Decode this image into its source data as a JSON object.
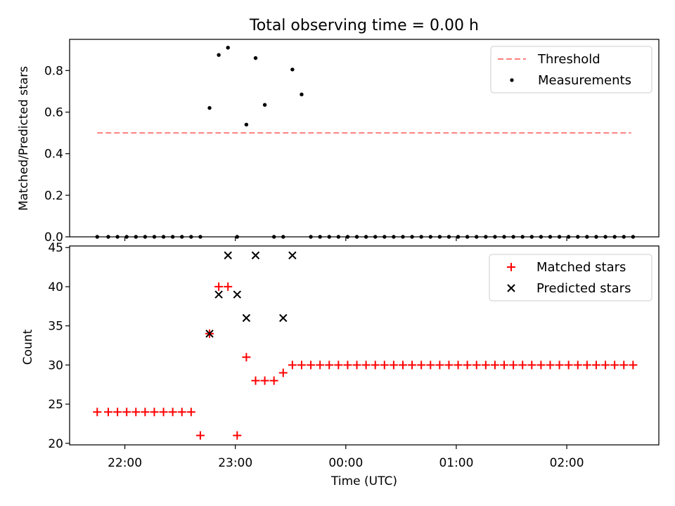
{
  "figure_title": "Total observing time = 0.00 h",
  "colors": {
    "threshold": "#ff7f7f",
    "matched": "#ff0000",
    "predicted": "#000000",
    "measurement": "#000000"
  },
  "chart_data": [
    {
      "type": "scatter",
      "title": "Total observing time = 0.00 h",
      "xlabel": "",
      "ylabel": "Matched/Predicted stars",
      "xlim": [
        "21:30",
        "02:50"
      ],
      "ylim": [
        0,
        0.95
      ],
      "yticks": [
        "0.0",
        "0.2",
        "0.4",
        "0.6",
        "0.8"
      ],
      "legend_position": "top-right",
      "series": [
        {
          "name": "Threshold",
          "kind": "dashed-line",
          "x": [
            "21:45",
            "02:35"
          ],
          "y": [
            0.5,
            0.5
          ]
        },
        {
          "name": "Measurements",
          "kind": "points",
          "x": [
            "21:45",
            "21:51",
            "21:56",
            "22:01",
            "22:06",
            "22:11",
            "22:16",
            "22:21",
            "22:26",
            "22:31",
            "22:36",
            "22:41",
            "22:46",
            "22:51",
            "22:56",
            "23:01",
            "23:06",
            "23:11",
            "23:16",
            "23:21",
            "23:26",
            "23:31",
            "23:36",
            "23:41",
            "23:46",
            "23:51",
            "23:56",
            "00:01",
            "00:06",
            "00:11",
            "00:16",
            "00:21",
            "00:26",
            "00:31",
            "00:36",
            "00:41",
            "00:46",
            "00:51",
            "00:56",
            "01:01",
            "01:06",
            "01:11",
            "01:16",
            "01:21",
            "01:26",
            "01:31",
            "01:36",
            "01:41",
            "01:46",
            "01:51",
            "01:56",
            "02:01",
            "02:06",
            "02:11",
            "02:16",
            "02:21",
            "02:26",
            "02:31",
            "02:36"
          ],
          "y": [
            0,
            0,
            0,
            0,
            0,
            0,
            0,
            0,
            0,
            0,
            0,
            0,
            0.62,
            0.875,
            0.91,
            0,
            0.54,
            0.86,
            0.635,
            0,
            0,
            0.805,
            0.685,
            0,
            0,
            0,
            0,
            0,
            0,
            0,
            0,
            0,
            0,
            0,
            0,
            0,
            0,
            0,
            0,
            0,
            0,
            0,
            0,
            0,
            0,
            0,
            0,
            0,
            0,
            0,
            0,
            0,
            0,
            0,
            0,
            0,
            0,
            0,
            0
          ]
        }
      ]
    },
    {
      "type": "scatter",
      "title": "",
      "xlabel": "Time (UTC)",
      "ylabel": "Count",
      "xlim": [
        "21:30",
        "02:50"
      ],
      "ylim": [
        19.8,
        45.2
      ],
      "xticks": [
        "22:00",
        "23:00",
        "00:00",
        "01:00",
        "02:00"
      ],
      "yticks": [
        "20",
        "25",
        "30",
        "35",
        "40",
        "45"
      ],
      "legend_position": "top-right",
      "series": [
        {
          "name": "Matched stars",
          "marker": "plus",
          "x": [
            "21:45",
            "21:51",
            "21:56",
            "22:01",
            "22:06",
            "22:11",
            "22:16",
            "22:21",
            "22:26",
            "22:31",
            "22:36",
            "22:41",
            "22:46",
            "22:51",
            "22:56",
            "23:01",
            "23:06",
            "23:11",
            "23:16",
            "23:21",
            "23:26",
            "23:31",
            "23:36",
            "23:41",
            "23:46",
            "23:51",
            "23:56",
            "00:01",
            "00:06",
            "00:11",
            "00:16",
            "00:21",
            "00:26",
            "00:31",
            "00:36",
            "00:41",
            "00:46",
            "00:51",
            "00:56",
            "01:01",
            "01:06",
            "01:11",
            "01:16",
            "01:21",
            "01:26",
            "01:31",
            "01:36",
            "01:41",
            "01:46",
            "01:51",
            "01:56",
            "02:01",
            "02:06",
            "02:11",
            "02:16",
            "02:21",
            "02:26",
            "02:31",
            "02:36"
          ],
          "y": [
            24,
            24,
            24,
            24,
            24,
            24,
            24,
            24,
            24,
            24,
            24,
            21,
            34,
            40,
            40,
            21,
            31,
            28,
            28,
            28,
            29,
            30,
            30,
            30,
            30,
            30,
            30,
            30,
            30,
            30,
            30,
            30,
            30,
            30,
            30,
            30,
            30,
            30,
            30,
            30,
            30,
            30,
            30,
            30,
            30,
            30,
            30,
            30,
            30,
            30,
            30,
            30,
            30,
            30,
            30,
            30,
            30,
            30,
            30
          ]
        },
        {
          "name": "Predicted stars",
          "marker": "x",
          "x": [
            "22:46",
            "22:51",
            "22:56",
            "23:01",
            "23:06",
            "23:11",
            "23:26",
            "23:31"
          ],
          "y": [
            34,
            39,
            44,
            39,
            36,
            44,
            36,
            44
          ]
        }
      ]
    }
  ]
}
